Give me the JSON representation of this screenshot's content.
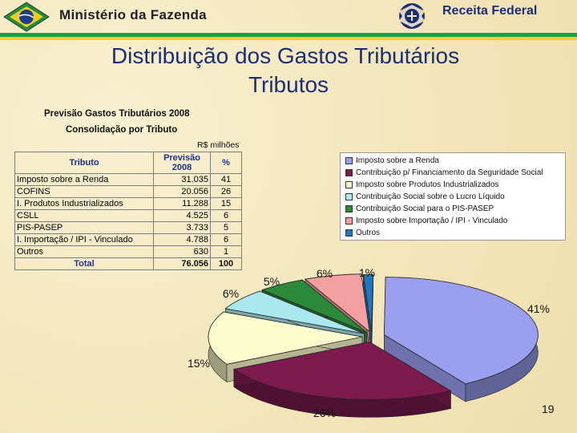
{
  "header": {
    "ministry": "Ministério da Fazenda",
    "agency": "Receita Federal"
  },
  "slide": {
    "title_line1": "Distribuição dos Gastos Tributários",
    "title_line2": "Tributos",
    "page_number": "19"
  },
  "table": {
    "title": "Previsão Gastos Tributários 2008",
    "subtitle": "Consolidação por Tributo",
    "unit": "R$ milhões",
    "headers": {
      "tributo": "Tributo",
      "previsao_line1": "Previsão",
      "previsao_line2": "2008",
      "pct": "%"
    },
    "rows": [
      {
        "name": "Imposto sobre a Renda",
        "value": "31.035",
        "pct": "41"
      },
      {
        "name": "COFINS",
        "value": "20.056",
        "pct": "26"
      },
      {
        "name": "I. Produtos Industrializados",
        "value": "11.288",
        "pct": "15"
      },
      {
        "name": "CSLL",
        "value": "4.525",
        "pct": "6"
      },
      {
        "name": "PIS-PASEP",
        "value": "3.733",
        "pct": "5"
      },
      {
        "name": "I. Importação / IPI - Vinculado",
        "value": "4.788",
        "pct": "6"
      },
      {
        "name": "Outros",
        "value": "630",
        "pct": "1"
      }
    ],
    "total": {
      "name": "Total",
      "value": "76.056",
      "pct": "100"
    }
  },
  "chart_data": {
    "type": "pie",
    "title": "",
    "categories": [
      "Imposto sobre a Renda",
      "Contribuição p/ Financiamento da Seguridade Social",
      "Imposto sobre Produtos Industrializados",
      "Contribuição Social sobre o Lucro Líquido",
      "Contribuição Social para o PIS-PASEP",
      "Imposto sobre Importação / IPI - Vinculado",
      "Outros"
    ],
    "values": [
      41,
      26,
      15,
      6,
      5,
      6,
      1
    ],
    "data_labels": [
      "41%",
      "26%",
      "15%",
      "6%",
      "5%",
      "6%",
      "1%"
    ],
    "colors": [
      "#9a9ff0",
      "#7d1b4f",
      "#fbfbcc",
      "#a8e8ee",
      "#2b8a3a",
      "#f5a0a0",
      "#1f77c4"
    ],
    "legend_position": "top-right",
    "exploded": true,
    "3d": true
  }
}
